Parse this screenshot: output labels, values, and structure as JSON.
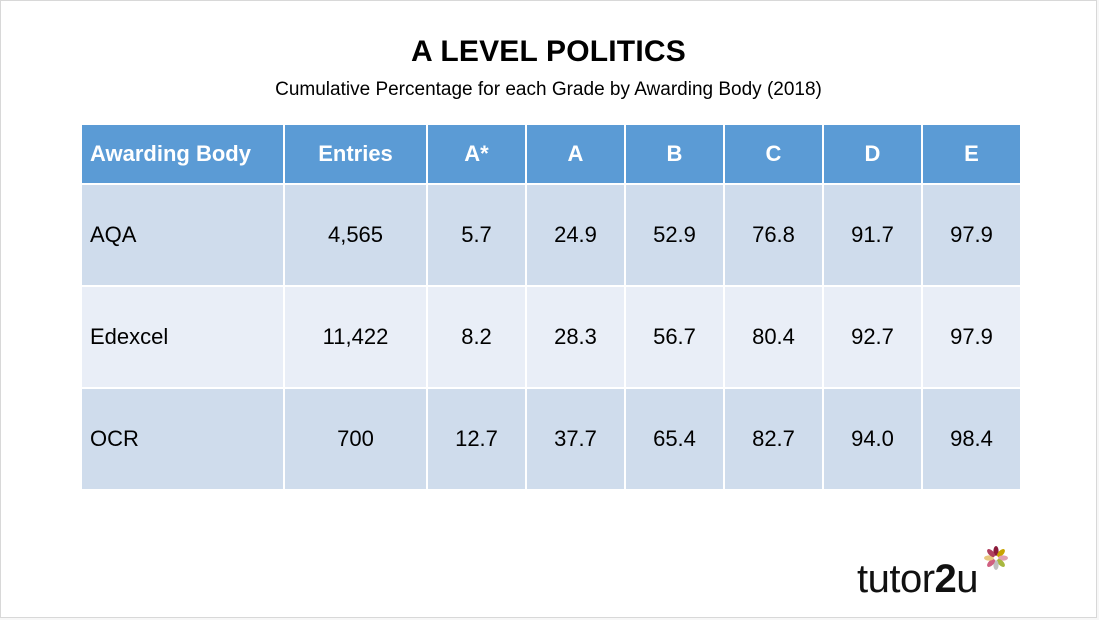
{
  "slide": {
    "title": "A LEVEL POLITICS",
    "subtitle": "Cumulative Percentage for each Grade by Awarding Body (2018)"
  },
  "table": {
    "headers": [
      "Awarding Body",
      "Entries",
      "A*",
      "A",
      "B",
      "C",
      "D",
      "E"
    ],
    "rows": [
      [
        "AQA",
        "4,565",
        "5.7",
        "24.9",
        "52.9",
        "76.8",
        "91.7",
        "97.9"
      ],
      [
        "Edexcel",
        "11,422",
        "8.2",
        "28.3",
        "56.7",
        "80.4",
        "92.7",
        "97.9"
      ],
      [
        "OCR",
        "700",
        "12.7",
        "37.7",
        "65.4",
        "82.7",
        "94.0",
        "98.4"
      ]
    ]
  },
  "logo": {
    "text_prefix": "tutor",
    "text_number": "2",
    "text_suffix": "u",
    "icon": "flower-icon"
  },
  "colors": {
    "header_bg": "#5b9bd5",
    "row_dark": "#cfdcec",
    "row_light": "#e9eef7"
  }
}
